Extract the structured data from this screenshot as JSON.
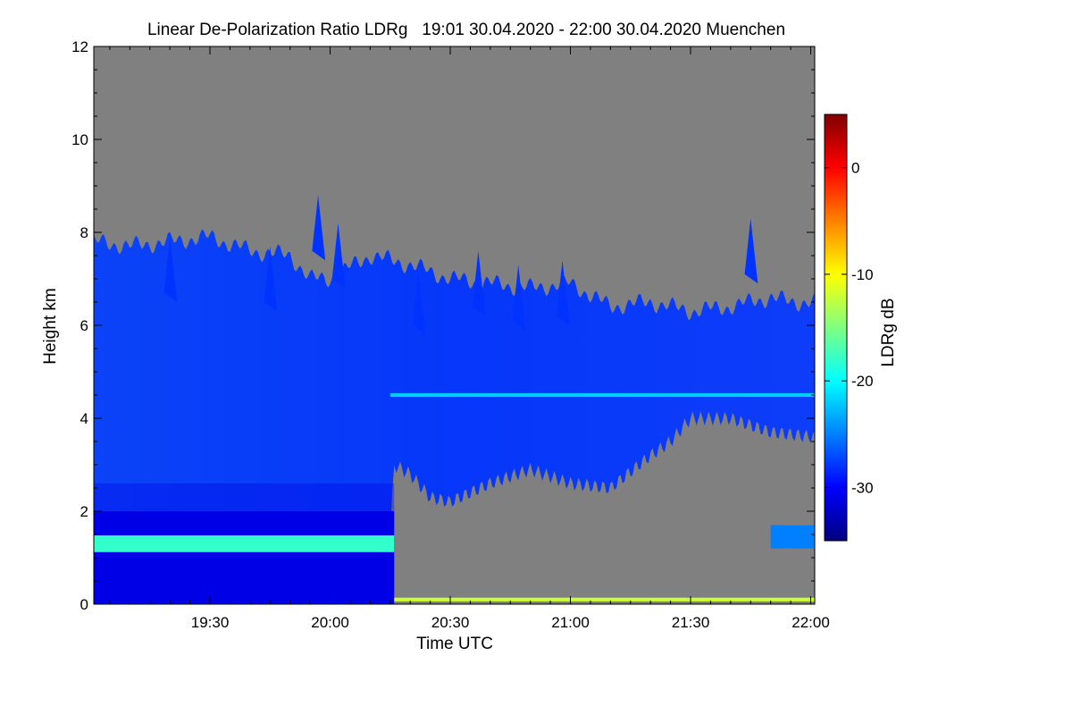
{
  "chart_data": {
    "type": "heatmap",
    "title": "Linear De-Polarization Ratio LDRg   19:01 30.04.2020 - 22:00 30.04.2020 Muenchen",
    "xlabel": "Time UTC",
    "ylabel": "Height km",
    "x_unit": "minutes since 19:00 UTC",
    "xlim": [
      1,
      181
    ],
    "x_ticks": [
      {
        "value": 30,
        "label": "19:30"
      },
      {
        "value": 60,
        "label": "20:00"
      },
      {
        "value": 90,
        "label": "20:30"
      },
      {
        "value": 120,
        "label": "21:00"
      },
      {
        "value": 150,
        "label": "21:30"
      },
      {
        "value": 180,
        "label": "22:00"
      }
    ],
    "ylim": [
      0,
      12
    ],
    "y_ticks": [
      {
        "value": 0,
        "label": "0"
      },
      {
        "value": 2,
        "label": "2"
      },
      {
        "value": 4,
        "label": "4"
      },
      {
        "value": 6,
        "label": "6"
      },
      {
        "value": 8,
        "label": "8"
      },
      {
        "value": 10,
        "label": "10"
      },
      {
        "value": 12,
        "label": "12"
      }
    ],
    "colorbar": {
      "label": "LDRg dB",
      "range": [
        -35,
        5
      ],
      "ticks": [
        {
          "value": 0,
          "label": "0"
        },
        {
          "value": -10,
          "label": "-10"
        },
        {
          "value": -20,
          "label": "-20"
        },
        {
          "value": -30,
          "label": "-30"
        }
      ],
      "colormap": [
        "#000080",
        "#0000ff",
        "#0080ff",
        "#00ffff",
        "#80ff80",
        "#ffff00",
        "#ff8000",
        "#ff0000",
        "#800000"
      ]
    },
    "no_data_color": "#808080",
    "regions": {
      "cloud_top_km": [
        {
          "t": 1,
          "h": 7.8
        },
        {
          "t": 10,
          "h": 7.7
        },
        {
          "t": 20,
          "h": 7.8
        },
        {
          "t": 30,
          "h": 7.9
        },
        {
          "t": 40,
          "h": 7.6
        },
        {
          "t": 50,
          "h": 7.5
        },
        {
          "t": 55,
          "h": 7.0
        },
        {
          "t": 60,
          "h": 7.0
        },
        {
          "t": 70,
          "h": 7.5
        },
        {
          "t": 80,
          "h": 7.3
        },
        {
          "t": 90,
          "h": 7.0
        },
        {
          "t": 100,
          "h": 6.9
        },
        {
          "t": 110,
          "h": 6.8
        },
        {
          "t": 120,
          "h": 6.9
        },
        {
          "t": 130,
          "h": 6.4
        },
        {
          "t": 140,
          "h": 6.5
        },
        {
          "t": 150,
          "h": 6.3
        },
        {
          "t": 160,
          "h": 6.4
        },
        {
          "t": 170,
          "h": 6.6
        },
        {
          "t": 175,
          "h": 6.5
        },
        {
          "t": 181,
          "h": 6.5
        }
      ],
      "cloud_base_km": [
        {
          "t": 1,
          "h": 0
        },
        {
          "t": 74,
          "h": 0
        },
        {
          "t": 76,
          "h": 3.0
        },
        {
          "t": 80,
          "h": 2.8
        },
        {
          "t": 85,
          "h": 2.3
        },
        {
          "t": 90,
          "h": 2.2
        },
        {
          "t": 100,
          "h": 2.6
        },
        {
          "t": 110,
          "h": 2.9
        },
        {
          "t": 120,
          "h": 2.6
        },
        {
          "t": 130,
          "h": 2.5
        },
        {
          "t": 140,
          "h": 3.2
        },
        {
          "t": 145,
          "h": 3.5
        },
        {
          "t": 150,
          "h": 4.0
        },
        {
          "t": 160,
          "h": 4.0
        },
        {
          "t": 170,
          "h": 3.7
        },
        {
          "t": 181,
          "h": 3.6
        }
      ],
      "lower_layer": {
        "t_start": 1,
        "t_end": 76,
        "base_km": 0.0,
        "top_km": 2.0,
        "ldr_db": -31
      },
      "mid_cloud_ldr_db": -28,
      "bright_band": {
        "t_start": 1,
        "t_end": 76,
        "h_km": 1.3,
        "ldr_db": -18
      },
      "upper_layer_band": {
        "t_start": 75,
        "t_end": 181,
        "h_km": 4.5,
        "ldr_db": -22
      },
      "surface_layer": {
        "t_start": 76,
        "t_end": 181,
        "h_km": 0.1,
        "ldr_db": -12
      },
      "right_low_layer": {
        "t_start": 170,
        "t_end": 181,
        "base_km": 1.2,
        "top_km": 1.7,
        "ldr_db": -25
      }
    }
  }
}
